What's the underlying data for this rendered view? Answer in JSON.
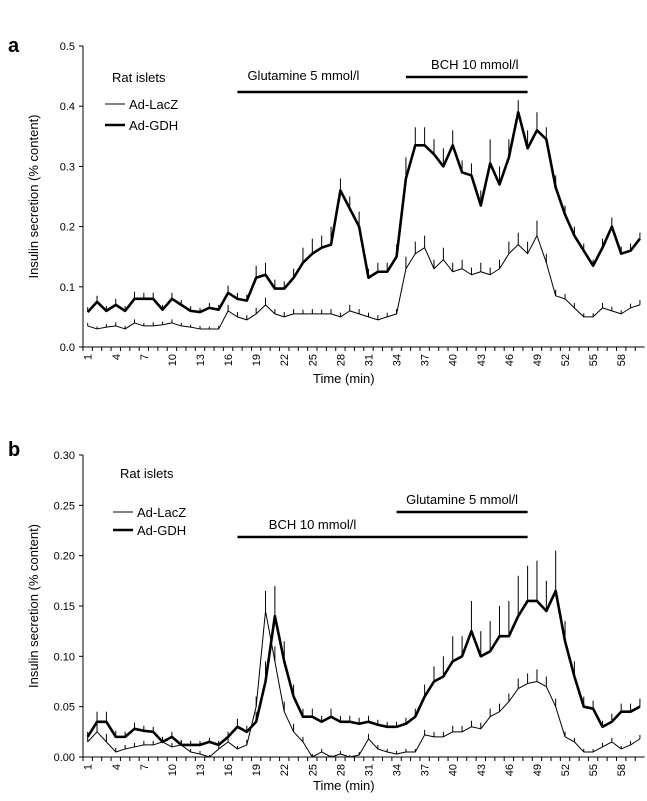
{
  "chart_data": [
    {
      "type": "line",
      "panel_label": "a",
      "y_label": "Insulin secretion (% content)",
      "x_label": "Time (min)",
      "legend_title": "Rat islets",
      "categories": [
        1,
        null,
        null,
        4,
        null,
        null,
        7,
        null,
        null,
        10,
        null,
        null,
        13,
        null,
        null,
        16,
        null,
        null,
        19,
        null,
        null,
        22,
        null,
        null,
        25,
        null,
        null,
        28,
        null,
        null,
        31,
        null,
        null,
        34,
        null,
        null,
        37,
        null,
        null,
        40,
        null,
        null,
        43,
        null,
        null,
        46,
        null,
        null,
        49,
        null,
        null,
        52,
        null,
        null,
        55,
        null,
        null,
        58,
        null,
        null
      ],
      "ylim": [
        0,
        0.5
      ],
      "yticks": [
        {
          "value": 0,
          "label": "0.0"
        },
        0.1,
        0.2,
        0.3,
        0.4,
        0.5
      ],
      "annotations": [
        {
          "text": "BCH 10 mmol/l",
          "start": 35,
          "end": 48
        },
        {
          "text": "Glutamine 5 mmol/l",
          "start": 17,
          "end": 48
        }
      ],
      "series": [
        {
          "name": "Ad-LacZ",
          "color": "#000000",
          "width": 1,
          "values": [
            0.035,
            0.03,
            0.033,
            0.035,
            0.03,
            0.04,
            0.035,
            0.035,
            0.037,
            0.04,
            0.035,
            0.033,
            0.03,
            0.03,
            0.03,
            0.06,
            0.05,
            0.045,
            0.055,
            0.07,
            0.055,
            0.05,
            0.055,
            0.055,
            0.055,
            0.055,
            0.055,
            0.05,
            0.06,
            0.055,
            0.05,
            0.045,
            0.05,
            0.055,
            0.13,
            0.155,
            0.165,
            0.13,
            0.145,
            0.125,
            0.13,
            0.12,
            0.125,
            0.12,
            0.13,
            0.155,
            0.17,
            0.155,
            0.185,
            0.14,
            0.085,
            0.08,
            0.065,
            0.05,
            0.05,
            0.065,
            0.06,
            0.055,
            0.065,
            0.07
          ],
          "errors": [
            0.005,
            0.004,
            0.005,
            0.006,
            0.005,
            0.006,
            0.005,
            0.006,
            0.005,
            0.006,
            0.005,
            0.004,
            0.005,
            0.004,
            0.005,
            0.01,
            0.008,
            0.008,
            0.01,
            0.012,
            0.008,
            0.008,
            0.008,
            0.007,
            0.008,
            0.007,
            0.008,
            0.007,
            0.01,
            0.008,
            0.007,
            0.008,
            0.007,
            0.008,
            0.02,
            0.02,
            0.02,
            0.015,
            0.02,
            0.015,
            0.015,
            0.012,
            0.015,
            0.012,
            0.015,
            0.02,
            0.02,
            0.02,
            0.025,
            0.015,
            0.01,
            0.008,
            0.008,
            0.006,
            0.006,
            0.008,
            0.007,
            0.006,
            0.007,
            0.008
          ]
        },
        {
          "name": "Ad-GDH",
          "color": "#000000",
          "width": 2.6,
          "values": [
            0.058,
            0.075,
            0.06,
            0.07,
            0.06,
            0.08,
            0.08,
            0.08,
            0.062,
            0.08,
            0.07,
            0.06,
            0.058,
            0.065,
            0.062,
            0.09,
            0.08,
            0.077,
            0.115,
            0.12,
            0.097,
            0.097,
            0.115,
            0.14,
            0.155,
            0.165,
            0.17,
            0.26,
            0.23,
            0.2,
            0.115,
            0.125,
            0.125,
            0.15,
            0.28,
            0.335,
            0.335,
            0.32,
            0.3,
            0.335,
            0.29,
            0.285,
            0.235,
            0.305,
            0.27,
            0.315,
            0.39,
            0.33,
            0.36,
            0.345,
            0.265,
            0.22,
            0.185,
            0.16,
            0.135,
            0.165,
            0.2,
            0.155,
            0.16,
            0.18
          ],
          "errors": [
            0.008,
            0.01,
            0.008,
            0.01,
            0.008,
            0.012,
            0.01,
            0.01,
            0.008,
            0.01,
            0.008,
            0.008,
            0.007,
            0.008,
            0.008,
            0.012,
            0.01,
            0.01,
            0.02,
            0.02,
            0.015,
            0.012,
            0.015,
            0.025,
            0.025,
            0.02,
            0.03,
            0.02,
            0.02,
            0.025,
            0.015,
            0.015,
            0.015,
            0.02,
            0.035,
            0.03,
            0.03,
            0.025,
            0.03,
            0.025,
            0.02,
            0.02,
            0.025,
            0.04,
            0.03,
            0.03,
            0.02,
            0.03,
            0.03,
            0.02,
            0.02,
            0.015,
            0.015,
            0.012,
            0.01,
            0.015,
            0.015,
            0.012,
            0.012,
            0.01
          ]
        }
      ]
    },
    {
      "type": "line",
      "panel_label": "b",
      "y_label": "Insulin secretion (% content)",
      "x_label": "Time (min)",
      "legend_title": "Rat islets",
      "categories": [
        1,
        null,
        null,
        4,
        null,
        null,
        7,
        null,
        null,
        10,
        null,
        null,
        13,
        null,
        null,
        16,
        null,
        null,
        19,
        null,
        null,
        22,
        null,
        null,
        25,
        null,
        null,
        28,
        null,
        null,
        31,
        null,
        null,
        34,
        null,
        null,
        37,
        null,
        null,
        40,
        null,
        null,
        43,
        null,
        null,
        46,
        null,
        null,
        49,
        null,
        null,
        52,
        null,
        null,
        55,
        null,
        null,
        58,
        null,
        null
      ],
      "ylim": [
        0,
        0.3
      ],
      "yticks": [
        {
          "value": 0,
          "label": "0.00"
        },
        0.05,
        {
          "value": 0.1,
          "label": "0.10"
        },
        0.15,
        {
          "value": 0.2,
          "label": "0.20"
        },
        0.25,
        {
          "value": 0.3,
          "label": "0.30"
        }
      ],
      "annotations": [
        {
          "text": "Glutamine 5 mmol/l",
          "start": 34,
          "end": 48
        },
        {
          "text": "BCH 10 mmol/l",
          "start": 17,
          "end": 48
        }
      ],
      "series": [
        {
          "name": "Ad-LacZ",
          "color": "#000000",
          "width": 1,
          "values": [
            0.015,
            0.025,
            0.015,
            0.005,
            0.008,
            0.01,
            0.012,
            0.012,
            0.015,
            0.01,
            0.012,
            0.005,
            0.003,
            0,
            0.008,
            0.015,
            0.008,
            0.012,
            0.05,
            0.145,
            0.095,
            0.045,
            0.025,
            0.015,
            0,
            0.005,
            0,
            0.003,
            0,
            0.002,
            0.018,
            0.008,
            0.005,
            0.003,
            0.005,
            0.005,
            0.022,
            0.02,
            0.02,
            0.025,
            0.025,
            0.03,
            0.028,
            0.04,
            0.045,
            0.055,
            0.068,
            0.073,
            0.075,
            0.07,
            0.05,
            0.02,
            0.015,
            0.005,
            0.005,
            0.01,
            0.015,
            0.008,
            0.012,
            0.018
          ],
          "errors": [
            0.005,
            0.01,
            0.008,
            0.004,
            0.004,
            0.004,
            0.004,
            0.004,
            0.005,
            0.004,
            0.005,
            0.003,
            0.003,
            0.002,
            0.003,
            0.004,
            0.003,
            0.005,
            0.01,
            0.02,
            0.015,
            0.01,
            0.008,
            0.005,
            0.003,
            0.003,
            0.002,
            0.003,
            0.002,
            0.003,
            0.005,
            0.004,
            0.003,
            0.003,
            0.003,
            0.003,
            0.005,
            0.005,
            0.005,
            0.006,
            0.006,
            0.006,
            0.006,
            0.008,
            0.008,
            0.008,
            0.01,
            0.01,
            0.012,
            0.01,
            0.008,
            0.005,
            0.004,
            0.003,
            0.003,
            0.004,
            0.004,
            0.003,
            0.004,
            0.004
          ]
        },
        {
          "name": "Ad-GDH",
          "color": "#000000",
          "width": 2.6,
          "values": [
            0.02,
            0.035,
            0.035,
            0.02,
            0.02,
            0.028,
            0.026,
            0.025,
            0.015,
            0.02,
            0.012,
            0.012,
            0.012,
            0.015,
            0.012,
            0.02,
            0.03,
            0.025,
            0.035,
            0.075,
            0.14,
            0.095,
            0.06,
            0.04,
            0.04,
            0.035,
            0.04,
            0.035,
            0.035,
            0.033,
            0.035,
            0.032,
            0.03,
            0.03,
            0.033,
            0.04,
            0.06,
            0.075,
            0.08,
            0.095,
            0.1,
            0.125,
            0.1,
            0.105,
            0.12,
            0.12,
            0.14,
            0.155,
            0.155,
            0.145,
            0.165,
            0.115,
            0.08,
            0.05,
            0.048,
            0.03,
            0.035,
            0.045,
            0.045,
            0.05
          ],
          "errors": [
            0.005,
            0.01,
            0.01,
            0.006,
            0.005,
            0.006,
            0.005,
            0.005,
            0.004,
            0.005,
            0.004,
            0.004,
            0.004,
            0.004,
            0.004,
            0.005,
            0.008,
            0.006,
            0.01,
            0.02,
            0.03,
            0.02,
            0.012,
            0.008,
            0.008,
            0.006,
            0.008,
            0.006,
            0.006,
            0.006,
            0.006,
            0.005,
            0.005,
            0.005,
            0.006,
            0.008,
            0.012,
            0.015,
            0.02,
            0.025,
            0.02,
            0.03,
            0.025,
            0.03,
            0.03,
            0.035,
            0.04,
            0.035,
            0.04,
            0.03,
            0.04,
            0.02,
            0.015,
            0.01,
            0.008,
            0.006,
            0.008,
            0.008,
            0.008,
            0.008
          ]
        }
      ]
    }
  ]
}
